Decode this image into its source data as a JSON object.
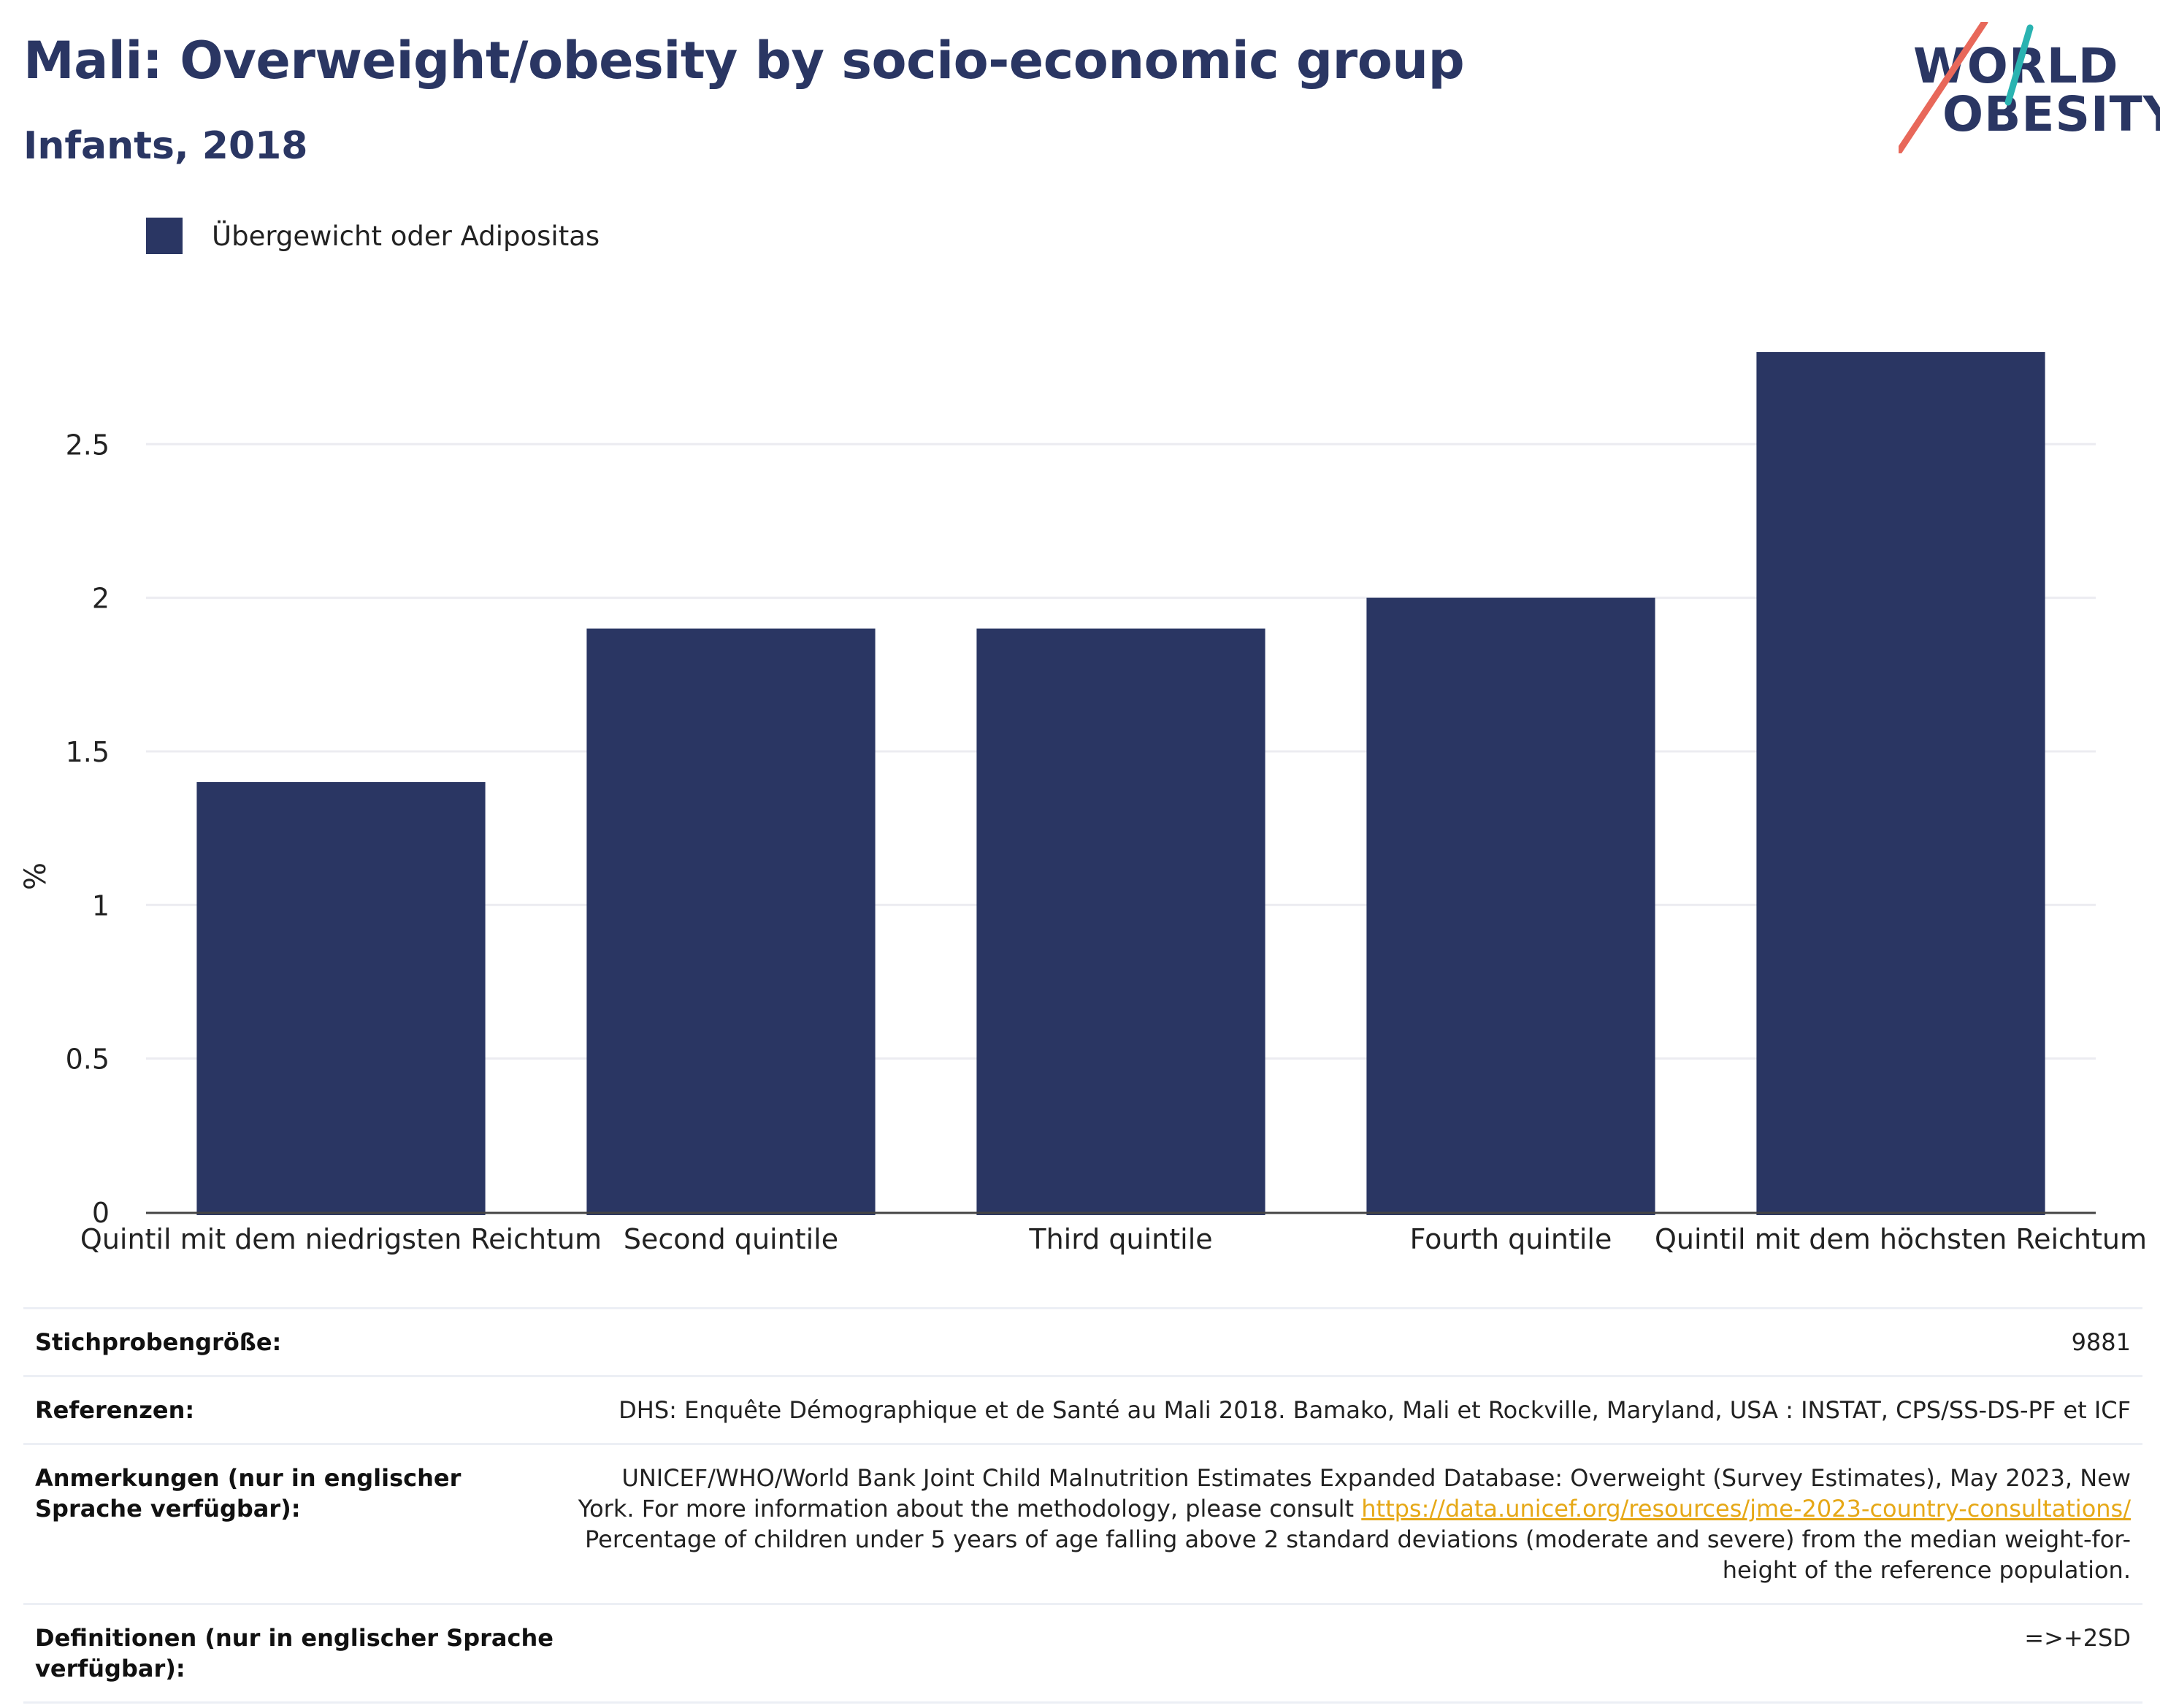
{
  "header": {
    "title": "Mali: Overweight/obesity by socio-economic group",
    "subtitle": "Infants, 2018"
  },
  "logo": {
    "line1": "WORLD",
    "line2": "OBESITY",
    "accent_colors": [
      "#2ab3b1",
      "#e8685a"
    ]
  },
  "colors": {
    "bar": "#2a3663",
    "title": "#2a3663",
    "link": "#e6a817"
  },
  "chart_data": {
    "type": "bar",
    "categories": [
      "Quintil mit dem niedrigsten Reichtum",
      "Second quintile",
      "Third quintile",
      "Fourth quintile",
      "Quintil mit dem höchsten Reichtum"
    ],
    "series": [
      {
        "name": "Übergewicht oder Adipositas",
        "values": [
          1.4,
          1.9,
          1.9,
          2.0,
          2.8
        ]
      }
    ],
    "ylabel": "%",
    "ylim": [
      0,
      2.9
    ],
    "yticks": [
      "0",
      "0.5",
      "1",
      "1.5",
      "2",
      "2.5"
    ],
    "ytick_values": [
      0,
      0.5,
      1,
      1.5,
      2,
      2.5
    ],
    "grid": true,
    "legend_position": "top-left"
  },
  "footer": {
    "sample_label": "Stichprobengröße:",
    "sample_value": "9881",
    "refs_label": "Referenzen:",
    "refs_value": "DHS: Enquête Démographique et de Santé au Mali 2018. Bamako, Mali et Rockville, Maryland, USA : INSTAT, CPS/SS-DS-PF et ICF",
    "notes_label": "Anmerkungen (nur in englischer Sprache verfügbar):",
    "notes_text1": "UNICEF/WHO/World Bank Joint Child Malnutrition Estimates Expanded Database: Overweight (Survey Estimates), May 2023, New York. For more information about the methodology, please consult ",
    "notes_link": "https://data.unicef.org/resources/jme-2023-country-consultations/",
    "notes_text2": "Percentage of children under 5 years of age falling above 2 standard deviations (moderate and severe) from the median weight-for-height of the reference population.",
    "defs_label": "Definitionen (nur in englischer Sprache verfügbar):",
    "defs_value": "=>+2SD"
  }
}
